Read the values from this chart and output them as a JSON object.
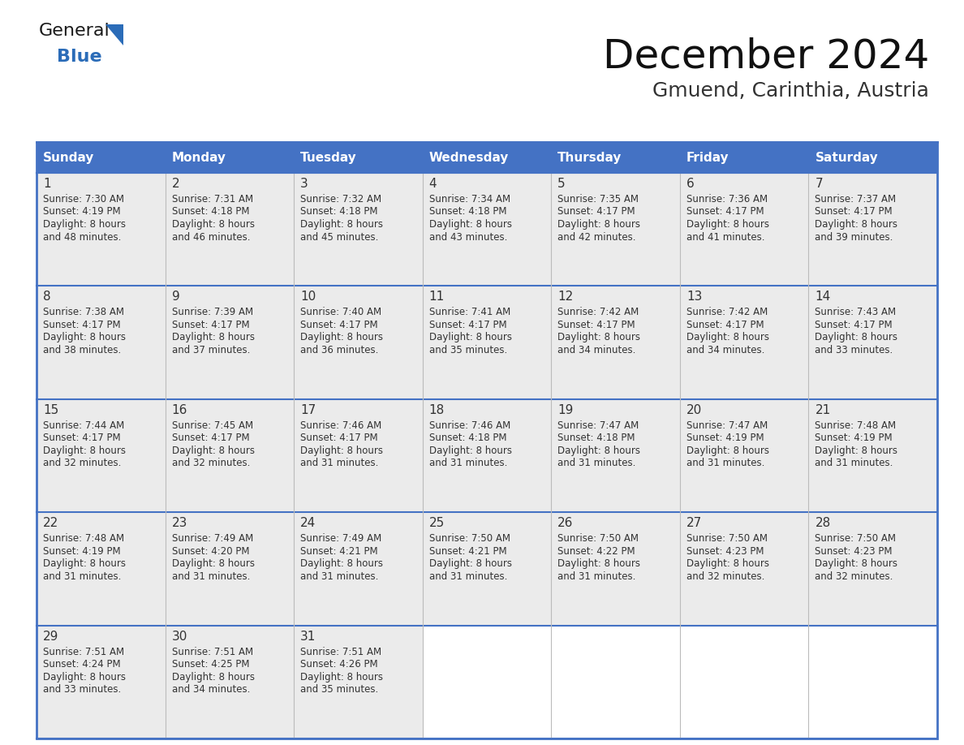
{
  "title": "December 2024",
  "subtitle": "Gmuend, Carinthia, Austria",
  "header_color": "#4472C4",
  "header_text_color": "#FFFFFF",
  "cell_bg_color": "#EBEBEB",
  "border_color": "#4472C4",
  "inner_border_color": "#4472C4",
  "day_headers": [
    "Sunday",
    "Monday",
    "Tuesday",
    "Wednesday",
    "Thursday",
    "Friday",
    "Saturday"
  ],
  "days": [
    {
      "day": 1,
      "col": 0,
      "row": 0,
      "sunrise": "7:30 AM",
      "sunset": "4:19 PM",
      "daylight_line1": "Daylight: 8 hours",
      "daylight_line2": "and 48 minutes."
    },
    {
      "day": 2,
      "col": 1,
      "row": 0,
      "sunrise": "7:31 AM",
      "sunset": "4:18 PM",
      "daylight_line1": "Daylight: 8 hours",
      "daylight_line2": "and 46 minutes."
    },
    {
      "day": 3,
      "col": 2,
      "row": 0,
      "sunrise": "7:32 AM",
      "sunset": "4:18 PM",
      "daylight_line1": "Daylight: 8 hours",
      "daylight_line2": "and 45 minutes."
    },
    {
      "day": 4,
      "col": 3,
      "row": 0,
      "sunrise": "7:34 AM",
      "sunset": "4:18 PM",
      "daylight_line1": "Daylight: 8 hours",
      "daylight_line2": "and 43 minutes."
    },
    {
      "day": 5,
      "col": 4,
      "row": 0,
      "sunrise": "7:35 AM",
      "sunset": "4:17 PM",
      "daylight_line1": "Daylight: 8 hours",
      "daylight_line2": "and 42 minutes."
    },
    {
      "day": 6,
      "col": 5,
      "row": 0,
      "sunrise": "7:36 AM",
      "sunset": "4:17 PM",
      "daylight_line1": "Daylight: 8 hours",
      "daylight_line2": "and 41 minutes."
    },
    {
      "day": 7,
      "col": 6,
      "row": 0,
      "sunrise": "7:37 AM",
      "sunset": "4:17 PM",
      "daylight_line1": "Daylight: 8 hours",
      "daylight_line2": "and 39 minutes."
    },
    {
      "day": 8,
      "col": 0,
      "row": 1,
      "sunrise": "7:38 AM",
      "sunset": "4:17 PM",
      "daylight_line1": "Daylight: 8 hours",
      "daylight_line2": "and 38 minutes."
    },
    {
      "day": 9,
      "col": 1,
      "row": 1,
      "sunrise": "7:39 AM",
      "sunset": "4:17 PM",
      "daylight_line1": "Daylight: 8 hours",
      "daylight_line2": "and 37 minutes."
    },
    {
      "day": 10,
      "col": 2,
      "row": 1,
      "sunrise": "7:40 AM",
      "sunset": "4:17 PM",
      "daylight_line1": "Daylight: 8 hours",
      "daylight_line2": "and 36 minutes."
    },
    {
      "day": 11,
      "col": 3,
      "row": 1,
      "sunrise": "7:41 AM",
      "sunset": "4:17 PM",
      "daylight_line1": "Daylight: 8 hours",
      "daylight_line2": "and 35 minutes."
    },
    {
      "day": 12,
      "col": 4,
      "row": 1,
      "sunrise": "7:42 AM",
      "sunset": "4:17 PM",
      "daylight_line1": "Daylight: 8 hours",
      "daylight_line2": "and 34 minutes."
    },
    {
      "day": 13,
      "col": 5,
      "row": 1,
      "sunrise": "7:42 AM",
      "sunset": "4:17 PM",
      "daylight_line1": "Daylight: 8 hours",
      "daylight_line2": "and 34 minutes."
    },
    {
      "day": 14,
      "col": 6,
      "row": 1,
      "sunrise": "7:43 AM",
      "sunset": "4:17 PM",
      "daylight_line1": "Daylight: 8 hours",
      "daylight_line2": "and 33 minutes."
    },
    {
      "day": 15,
      "col": 0,
      "row": 2,
      "sunrise": "7:44 AM",
      "sunset": "4:17 PM",
      "daylight_line1": "Daylight: 8 hours",
      "daylight_line2": "and 32 minutes."
    },
    {
      "day": 16,
      "col": 1,
      "row": 2,
      "sunrise": "7:45 AM",
      "sunset": "4:17 PM",
      "daylight_line1": "Daylight: 8 hours",
      "daylight_line2": "and 32 minutes."
    },
    {
      "day": 17,
      "col": 2,
      "row": 2,
      "sunrise": "7:46 AM",
      "sunset": "4:17 PM",
      "daylight_line1": "Daylight: 8 hours",
      "daylight_line2": "and 31 minutes."
    },
    {
      "day": 18,
      "col": 3,
      "row": 2,
      "sunrise": "7:46 AM",
      "sunset": "4:18 PM",
      "daylight_line1": "Daylight: 8 hours",
      "daylight_line2": "and 31 minutes."
    },
    {
      "day": 19,
      "col": 4,
      "row": 2,
      "sunrise": "7:47 AM",
      "sunset": "4:18 PM",
      "daylight_line1": "Daylight: 8 hours",
      "daylight_line2": "and 31 minutes."
    },
    {
      "day": 20,
      "col": 5,
      "row": 2,
      "sunrise": "7:47 AM",
      "sunset": "4:19 PM",
      "daylight_line1": "Daylight: 8 hours",
      "daylight_line2": "and 31 minutes."
    },
    {
      "day": 21,
      "col": 6,
      "row": 2,
      "sunrise": "7:48 AM",
      "sunset": "4:19 PM",
      "daylight_line1": "Daylight: 8 hours",
      "daylight_line2": "and 31 minutes."
    },
    {
      "day": 22,
      "col": 0,
      "row": 3,
      "sunrise": "7:48 AM",
      "sunset": "4:19 PM",
      "daylight_line1": "Daylight: 8 hours",
      "daylight_line2": "and 31 minutes."
    },
    {
      "day": 23,
      "col": 1,
      "row": 3,
      "sunrise": "7:49 AM",
      "sunset": "4:20 PM",
      "daylight_line1": "Daylight: 8 hours",
      "daylight_line2": "and 31 minutes."
    },
    {
      "day": 24,
      "col": 2,
      "row": 3,
      "sunrise": "7:49 AM",
      "sunset": "4:21 PM",
      "daylight_line1": "Daylight: 8 hours",
      "daylight_line2": "and 31 minutes."
    },
    {
      "day": 25,
      "col": 3,
      "row": 3,
      "sunrise": "7:50 AM",
      "sunset": "4:21 PM",
      "daylight_line1": "Daylight: 8 hours",
      "daylight_line2": "and 31 minutes."
    },
    {
      "day": 26,
      "col": 4,
      "row": 3,
      "sunrise": "7:50 AM",
      "sunset": "4:22 PM",
      "daylight_line1": "Daylight: 8 hours",
      "daylight_line2": "and 31 minutes."
    },
    {
      "day": 27,
      "col": 5,
      "row": 3,
      "sunrise": "7:50 AM",
      "sunset": "4:23 PM",
      "daylight_line1": "Daylight: 8 hours",
      "daylight_line2": "and 32 minutes."
    },
    {
      "day": 28,
      "col": 6,
      "row": 3,
      "sunrise": "7:50 AM",
      "sunset": "4:23 PM",
      "daylight_line1": "Daylight: 8 hours",
      "daylight_line2": "and 32 minutes."
    },
    {
      "day": 29,
      "col": 0,
      "row": 4,
      "sunrise": "7:51 AM",
      "sunset": "4:24 PM",
      "daylight_line1": "Daylight: 8 hours",
      "daylight_line2": "and 33 minutes."
    },
    {
      "day": 30,
      "col": 1,
      "row": 4,
      "sunrise": "7:51 AM",
      "sunset": "4:25 PM",
      "daylight_line1": "Daylight: 8 hours",
      "daylight_line2": "and 34 minutes."
    },
    {
      "day": 31,
      "col": 2,
      "row": 4,
      "sunrise": "7:51 AM",
      "sunset": "4:26 PM",
      "daylight_line1": "Daylight: 8 hours",
      "daylight_line2": "and 35 minutes."
    }
  ],
  "num_rows": 5,
  "num_cols": 7,
  "logo_general_color": "#1a1a1a",
  "logo_blue_color": "#2B6CB8",
  "logo_triangle_color": "#2B6CB8",
  "title_fontsize": 36,
  "subtitle_fontsize": 18,
  "header_fontsize": 11,
  "day_num_fontsize": 11,
  "cell_text_fontsize": 8.5
}
